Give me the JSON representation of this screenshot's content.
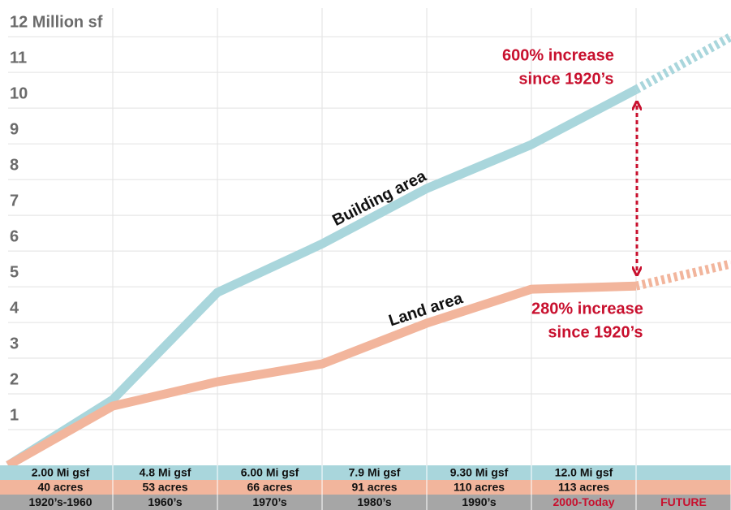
{
  "chart_data": {
    "type": "line",
    "ylim": [
      0,
      12.8
    ],
    "yticks": [
      1,
      2,
      3,
      4,
      5,
      6,
      7,
      8,
      9,
      10,
      11,
      {
        "value": 12,
        "label": "12 Million sf"
      }
    ],
    "grid": true,
    "dash_after_index": 6,
    "series": [
      {
        "name": "Building area",
        "color": "#a9d6dc",
        "values": [
          0,
          1.84,
          4.84,
          6.2,
          7.75,
          8.98,
          10.52,
          12.0
        ]
      },
      {
        "name": "Land area",
        "color": "#f2b59c",
        "values": [
          0,
          1.66,
          2.34,
          2.84,
          3.98,
          4.93,
          5.02,
          5.64
        ]
      }
    ],
    "annotations": [
      {
        "lines": [
          "600% increase",
          "since 1920’s"
        ],
        "color": "#c8102e"
      },
      {
        "lines": [
          "280% increase",
          "since 1920’s"
        ],
        "color": "#c8102e"
      }
    ],
    "table": {
      "rows": [
        [
          "2.00 Mi gsf",
          "4.8 Mi gsf",
          "6.00 Mi gsf",
          "7.9 Mi gsf",
          "9.30 Mi gsf",
          "12.0 Mi gsf",
          null
        ],
        [
          "40 acres",
          "53 acres",
          "66 acres",
          "91 acres",
          "110 acres",
          "113 acres",
          null
        ],
        [
          "1920’s-1960",
          "1960’s",
          "1970’s",
          "1980’s",
          "1990’s",
          "2000-Today",
          "FUTURE"
        ]
      ]
    }
  }
}
